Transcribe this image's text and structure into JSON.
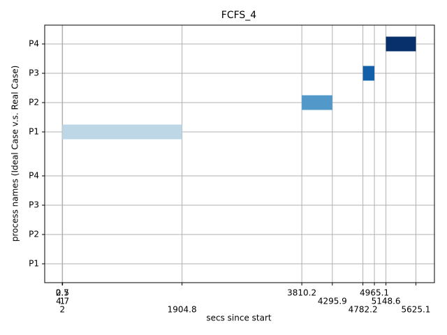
{
  "chart_data": {
    "type": "gantt",
    "title": "FCFS_4",
    "xlabel": "secs since start",
    "ylabel": "process names (Ideal Case v.s. Real Case)",
    "xlim": [
      -280,
      5920
    ],
    "xticks": [
      0.7,
      1.0,
      2.0,
      2.5,
      4.7,
      1904.8,
      3810.2,
      4295.9,
      4782.2,
      4965.1,
      5148.6,
      5625.1
    ],
    "grid": true,
    "groups": [
      {
        "rows": [
          "P1",
          "P2",
          "P3",
          "P4"
        ],
        "bars": []
      },
      {
        "rows": [
          "P1",
          "P2",
          "P3",
          "P4"
        ],
        "bars": [
          {
            "start": 0.7,
            "end": 1904.8,
            "color": "#bdd7e7"
          },
          {
            "start": 3810.2,
            "end": 4295.9,
            "color": "#5299c9"
          },
          {
            "start": 4782.2,
            "end": 4965.1,
            "color": "#1460a8"
          },
          {
            "start": 5148.6,
            "end": 5625.1,
            "color": "#08306b"
          }
        ]
      }
    ]
  }
}
